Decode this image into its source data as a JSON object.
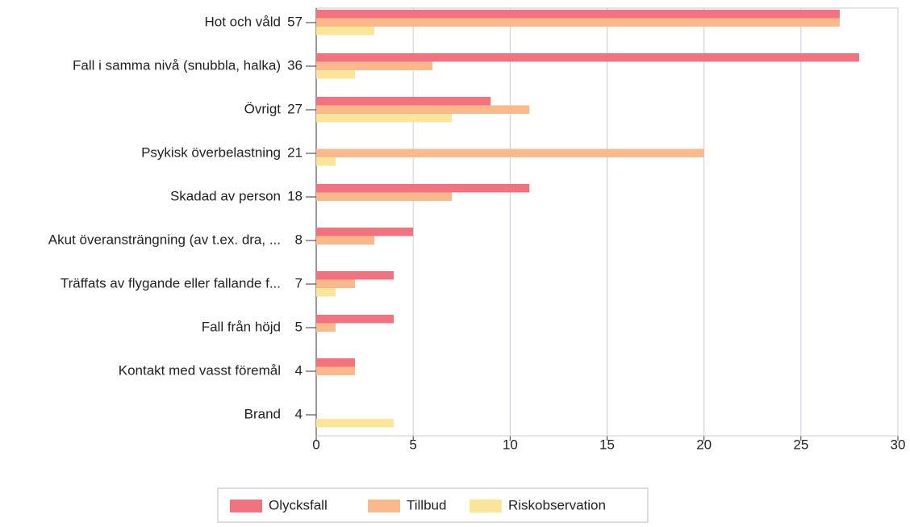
{
  "chart_data": {
    "type": "barh",
    "categories": [
      "Hot och våld",
      "Fall i samma nivå (snubbla, halka)",
      "Övrigt",
      "Psykisk överbelastning",
      "Skadad av person",
      "Akut överansträngning (av t.ex. dra, ...",
      "Träffats av flygande eller fallande f...",
      "Fall från höjd",
      "Kontakt med vasst föremål",
      "Brand"
    ],
    "category_totals": [
      57,
      36,
      27,
      21,
      18,
      8,
      7,
      5,
      4,
      4
    ],
    "series": [
      {
        "name": "Olycksfall",
        "color": "#f2727f",
        "values": [
          27,
          28,
          9,
          0,
          11,
          5,
          4,
          4,
          2,
          0
        ]
      },
      {
        "name": "Tillbud",
        "color": "#f9b98b",
        "values": [
          27,
          6,
          11,
          20,
          7,
          3,
          2,
          1,
          2,
          0
        ]
      },
      {
        "name": "Riskobservation",
        "color": "#fbe59b",
        "values": [
          3,
          2,
          7,
          1,
          0,
          0,
          1,
          0,
          0,
          4
        ]
      }
    ],
    "xlim": [
      0,
      30
    ],
    "xticks": [
      0,
      5,
      10,
      15,
      20,
      25,
      30
    ],
    "grid": true,
    "legend": "bottom"
  }
}
